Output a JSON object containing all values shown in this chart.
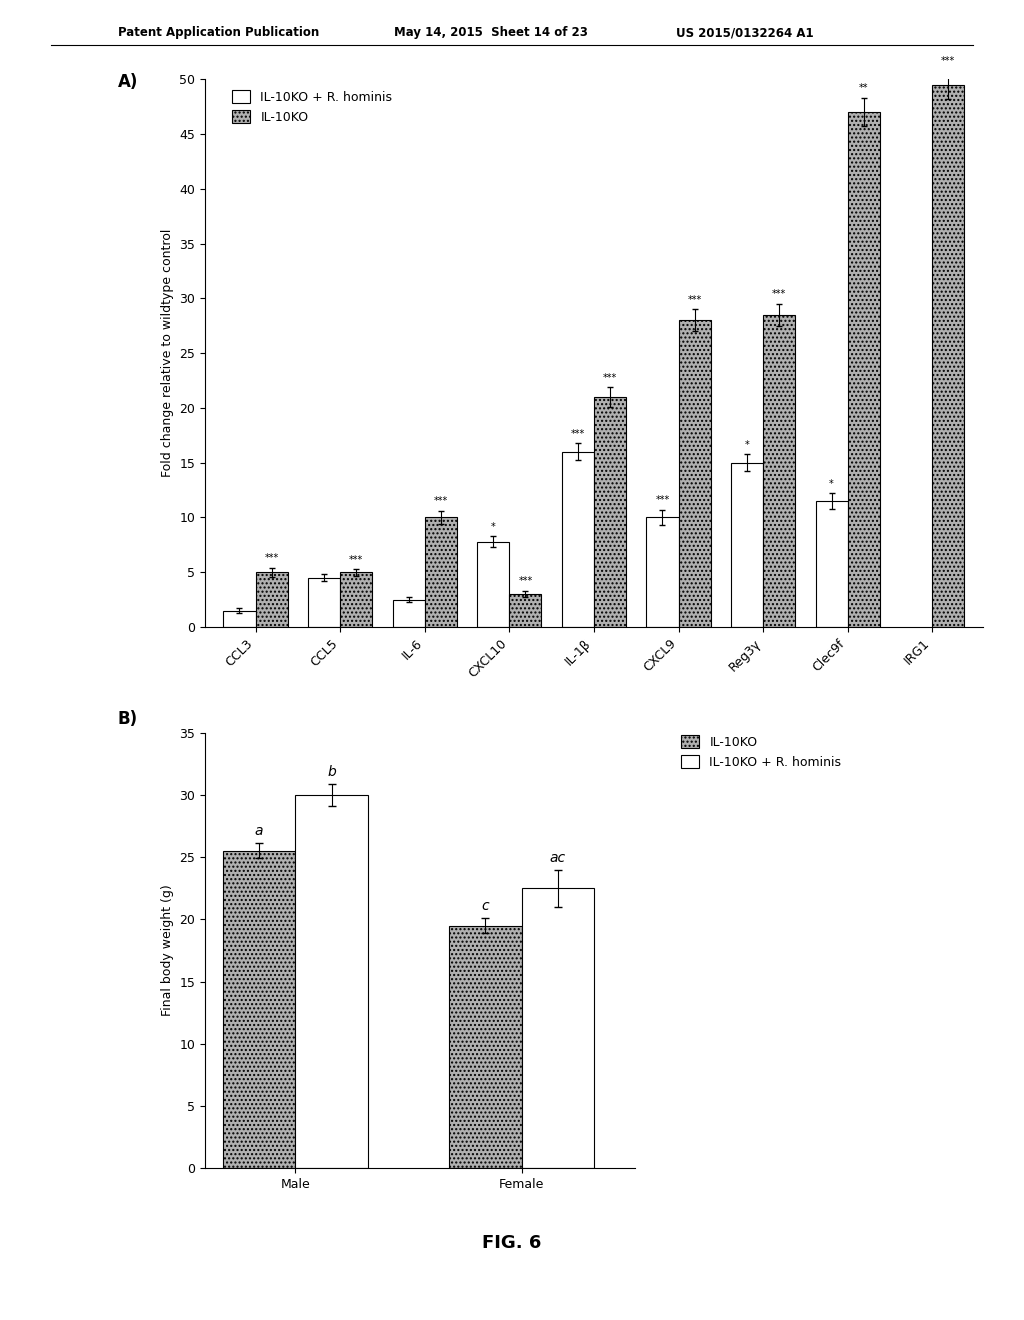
{
  "panel_A": {
    "categories": [
      "CCL3",
      "CCL5",
      "IL-6",
      "CXCL10",
      "IL-1β",
      "CXCL9",
      "Reg3γ",
      "Clec9f",
      "IRG1"
    ],
    "white_vals": [
      1.5,
      4.5,
      2.5,
      7.8,
      16.0,
      10.0,
      15.0,
      11.5,
      null
    ],
    "hatched_vals": [
      5.0,
      5.0,
      10.0,
      3.0,
      21.0,
      28.0,
      28.5,
      47.0,
      49.5
    ],
    "white_errors": [
      0.2,
      0.3,
      0.2,
      0.5,
      0.8,
      0.7,
      0.8,
      0.7,
      null
    ],
    "hatched_errors": [
      0.4,
      0.3,
      0.6,
      0.3,
      0.9,
      1.0,
      1.0,
      1.3,
      1.3
    ],
    "ylabel": "Fold change relative to wildtype control",
    "ylim": [
      0,
      50
    ],
    "yticks": [
      0,
      5,
      10,
      15,
      20,
      25,
      30,
      35,
      40,
      45,
      50
    ],
    "sig_white": [
      null,
      null,
      null,
      "*",
      "***",
      "***",
      "*",
      "*",
      null
    ],
    "sig_hatched": [
      "***",
      "***",
      "***",
      "***",
      "***",
      "***",
      "***",
      "**",
      "***"
    ],
    "legend_white": "IL-10KO + R. hominis",
    "legend_hatched": "IL-10KO",
    "panel_label": "A)"
  },
  "panel_B": {
    "groups": [
      "Male",
      "Female"
    ],
    "hatched_vals": [
      25.5,
      19.5
    ],
    "white_vals": [
      30.0,
      22.5
    ],
    "hatched_errors": [
      0.6,
      0.6
    ],
    "white_errors": [
      0.9,
      1.5
    ],
    "ylabel": "Final body weight (g)",
    "ylim": [
      0,
      35
    ],
    "yticks": [
      0,
      5,
      10,
      15,
      20,
      25,
      30,
      35
    ],
    "labels_hatched": [
      "a",
      "c"
    ],
    "labels_white": [
      "b",
      "ac"
    ],
    "legend_hatched": "IL-10KO",
    "legend_white": "IL-10KO + R. hominis",
    "panel_label": "B)"
  },
  "header_left": "Patent Application Publication",
  "header_mid": "May 14, 2015  Sheet 14 of 23",
  "header_right": "US 2015/0132264 A1",
  "fig_label": "FIG. 6",
  "bar_color_hatched": "#b0b0b0",
  "bar_color_white": "#ffffff",
  "bar_edge_color": "#000000"
}
